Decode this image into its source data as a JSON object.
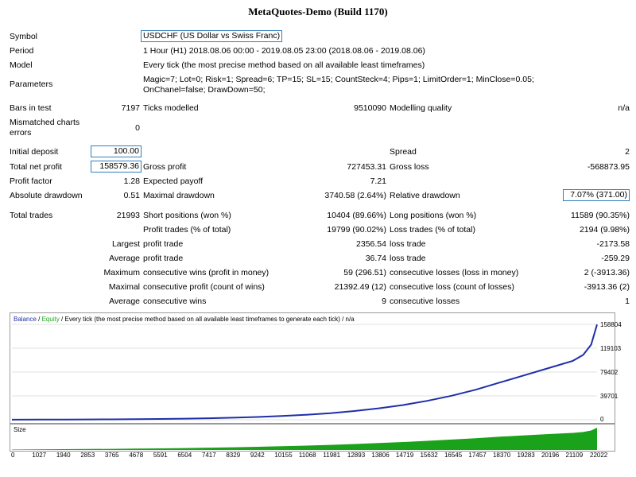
{
  "title": "MetaQuotes-Demo (Build 1170)",
  "rows": {
    "symbol": {
      "label": "Symbol",
      "value": "USDCHF (US Dollar vs Swiss Franc)"
    },
    "period": {
      "label": "Period",
      "value": "1 Hour (H1) 2018.08.06 00:00 - 2019.08.05 23:00 (2018.08.06 - 2019.08.06)"
    },
    "model": {
      "label": "Model",
      "value": "Every tick (the most precise method based on all available least timeframes)"
    },
    "parameters": {
      "label": "Parameters",
      "line1": "Magic=7; Lot=0; Risk=1; Spread=6; TP=15; SL=15; CountSteck=4; Pips=1; LimitOrder=1; MinClose=0.05;",
      "line2": "OnChanel=false; DrawDown=50;"
    },
    "bars": {
      "label": "Bars in test",
      "value": "7197",
      "label2": "Ticks modelled",
      "value2": "9510090",
      "label3": "Modelling quality",
      "value3": "n/a"
    },
    "mismatched": {
      "label1": "Mismatched charts",
      "label2": "errors",
      "value": "0"
    },
    "initial": {
      "label": "Initial deposit",
      "value": "100.00",
      "label3": "Spread",
      "value3": "2"
    },
    "netprofit": {
      "label": "Total net profit",
      "value": "158579.36",
      "label2": "Gross profit",
      "value2": "727453.31",
      "label3": "Gross loss",
      "value3": "-568873.95"
    },
    "profitfactor": {
      "label": "Profit factor",
      "value": "1.28",
      "label2": "Expected payoff",
      "value2": "7.21"
    },
    "absdd": {
      "label": "Absolute drawdown",
      "value": "0.51",
      "label2": "Maximal drawdown",
      "value2": "3740.58 (2.64%)",
      "label3": "Relative drawdown",
      "value3": "7.07% (371.00)"
    },
    "totaltrades": {
      "label": "Total trades",
      "value": "21993",
      "label2": "Short positions (won %)",
      "value2": "10404 (89.66%)",
      "label3": "Long positions (won %)",
      "value3": "11589 (90.35%)"
    },
    "profittrades": {
      "label2": "Profit trades (% of total)",
      "value2": "19799 (90.02%)",
      "label3": "Loss trades (% of total)",
      "value3": "2194 (9.98%)"
    },
    "largest": {
      "label": "Largest",
      "label2": "profit trade",
      "value2": "2356.54",
      "label3": "loss trade",
      "value3": "-2173.58"
    },
    "average": {
      "label": "Average",
      "label2": "profit trade",
      "value2": "36.74",
      "label3": "loss trade",
      "value3": "-259.29"
    },
    "maximum": {
      "label": "Maximum",
      "label2": "consecutive wins (profit in money)",
      "value2": "59 (296.51)",
      "label3": "consecutive losses (loss in money)",
      "value3": "2 (-3913.36)"
    },
    "maximal": {
      "label": "Maximal",
      "label2": "consecutive profit (count of wins)",
      "value2": "21392.49 (12)",
      "label3": "consecutive loss (count of losses)",
      "value3": "-3913.36 (2)"
    },
    "average2": {
      "label": "Average",
      "label2": "consecutive wins",
      "value2": "9",
      "label3": "consecutive losses",
      "value3": "1"
    }
  },
  "chart": {
    "legend_balance": "Balance",
    "legend_sep": " / ",
    "legend_equity": "Equity",
    "legend_rest": " / Every tick (the most precise method based on all available least timeframes to generate each tick) / n/a",
    "y_ticks": [
      "158804",
      "119103",
      "79402",
      "39701",
      "0"
    ],
    "size_label": "Size",
    "x_ticks": [
      "0",
      "1027",
      "1940",
      "2853",
      "3765",
      "4678",
      "5591",
      "6504",
      "7417",
      "8329",
      "9242",
      "10155",
      "11068",
      "11981",
      "12893",
      "13806",
      "14719",
      "15632",
      "16545",
      "17457",
      "18370",
      "19283",
      "20196",
      "21109",
      "22022"
    ],
    "colors": {
      "balance": "#1f2fa8",
      "equity": "#1fa81f",
      "size": "#1aa31a"
    }
  },
  "chart_data": {
    "type": "line",
    "ylim": [
      0,
      158804
    ],
    "xlim": [
      0,
      22022
    ],
    "series": [
      {
        "name": "Balance",
        "x": [
          0,
          1027,
          1940,
          2853,
          3765,
          4678,
          5591,
          6504,
          7417,
          8329,
          9242,
          10155,
          11068,
          11981,
          12893,
          13806,
          14719,
          15632,
          16545,
          17457,
          18370,
          19283,
          20196,
          21109,
          21500,
          21800,
          22022
        ],
        "y": [
          100,
          200,
          350,
          500,
          700,
          950,
          1300,
          1800,
          2500,
          3400,
          4600,
          6200,
          8300,
          11000,
          14500,
          19000,
          24500,
          31500,
          40000,
          50000,
          62000,
          74000,
          86000,
          98000,
          108000,
          125000,
          158579
        ]
      }
    ]
  }
}
